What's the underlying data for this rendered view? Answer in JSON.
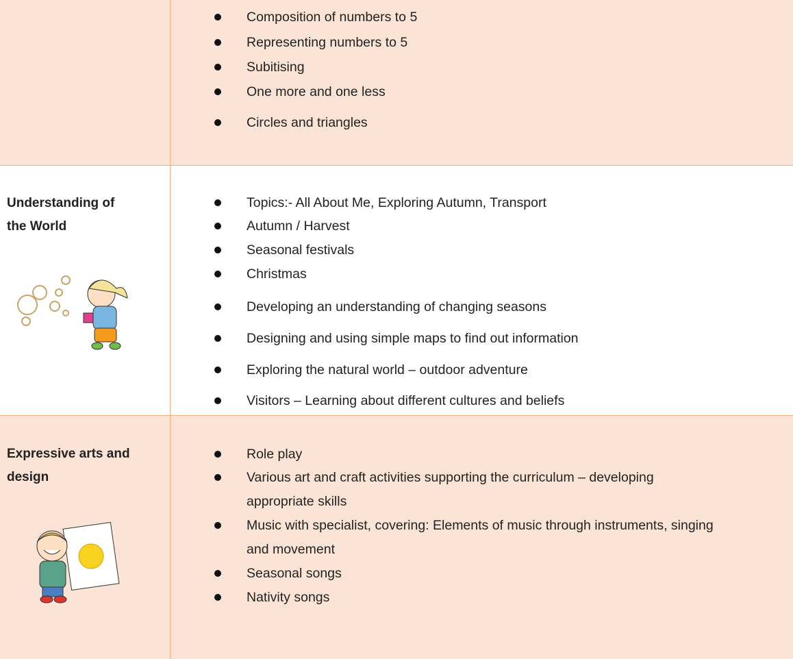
{
  "table": {
    "rows": [
      {
        "heading": null,
        "items": [
          "Composition of numbers to 5",
          "Representing numbers to 5",
          "Subitising",
          "One more and one less",
          "Circles and triangles"
        ]
      },
      {
        "heading": "Understanding of the World",
        "items": [
          "Topics:- All About Me, Exploring Autumn, Transport",
          "Autumn / Harvest",
          "Seasonal festivals",
          "Christmas",
          "Developing an understanding of changing seasons",
          "Designing and using simple maps to find out information",
          "Exploring the natural world – outdoor adventure",
          "Visitors – Learning about different cultures and beliefs"
        ]
      },
      {
        "heading": "Expressive arts and design",
        "items": [
          "Role play",
          "Various art and craft activities supporting the curriculum – developing appropriate skills",
          "Music with specialist, covering: Elements of music through instruments, singing and movement",
          "Seasonal songs",
          "Nativity songs"
        ]
      }
    ]
  }
}
